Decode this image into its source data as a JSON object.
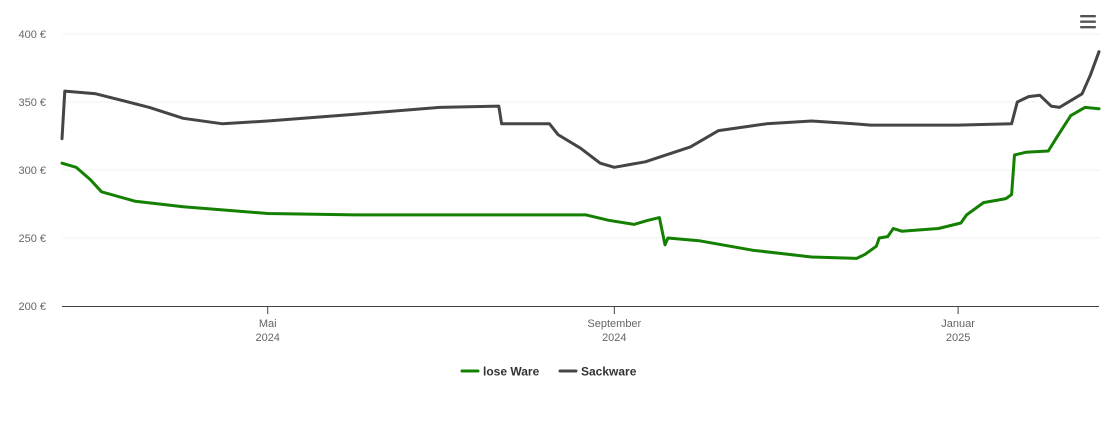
{
  "menu": {
    "icon": "hamburger-menu-icon"
  },
  "chart_data": {
    "type": "line",
    "title": "",
    "xlabel": "",
    "ylabel": "",
    "ylim": [
      200,
      400
    ],
    "y_ticks": [
      {
        "value": 200,
        "label": "200 €"
      },
      {
        "value": 250,
        "label": "250 €"
      },
      {
        "value": 300,
        "label": "300 €"
      },
      {
        "value": 350,
        "label": "350 €"
      },
      {
        "value": 400,
        "label": "400 €"
      }
    ],
    "xlim": [
      "2024-02-18",
      "2025-02-20"
    ],
    "x_ticks": [
      {
        "date": "2024-05-01",
        "line1": "Mai",
        "line2": "2024"
      },
      {
        "date": "2024-09-01",
        "line1": "September",
        "line2": "2024"
      },
      {
        "date": "2025-01-01",
        "line1": "Januar",
        "line2": "2025"
      }
    ],
    "grid": true,
    "legend_position": "bottom-center",
    "series": [
      {
        "name": "lose Ware",
        "color": "#138000",
        "points": [
          [
            "2024-02-18",
            305
          ],
          [
            "2024-02-23",
            302
          ],
          [
            "2024-02-28",
            293
          ],
          [
            "2024-03-03",
            284
          ],
          [
            "2024-03-15",
            277
          ],
          [
            "2024-04-01",
            273
          ],
          [
            "2024-05-01",
            268
          ],
          [
            "2024-06-01",
            267
          ],
          [
            "2024-08-01",
            267
          ],
          [
            "2024-08-22",
            267
          ],
          [
            "2024-08-30",
            263
          ],
          [
            "2024-09-08",
            260
          ],
          [
            "2024-09-13",
            263
          ],
          [
            "2024-09-17",
            265
          ],
          [
            "2024-09-19",
            245
          ],
          [
            "2024-09-20",
            250
          ],
          [
            "2024-10-01",
            248
          ],
          [
            "2024-10-20",
            241
          ],
          [
            "2024-11-10",
            236
          ],
          [
            "2024-11-26",
            235
          ],
          [
            "2024-11-29",
            238
          ],
          [
            "2024-12-03",
            244
          ],
          [
            "2024-12-04",
            250
          ],
          [
            "2024-12-07",
            251
          ],
          [
            "2024-12-09",
            257
          ],
          [
            "2024-12-12",
            255
          ],
          [
            "2024-12-25",
            257
          ],
          [
            "2025-01-02",
            261
          ],
          [
            "2025-01-04",
            267
          ],
          [
            "2025-01-10",
            276
          ],
          [
            "2025-01-18",
            279
          ],
          [
            "2025-01-20",
            282
          ],
          [
            "2025-01-21",
            311
          ],
          [
            "2025-01-25",
            313
          ],
          [
            "2025-02-02",
            314
          ],
          [
            "2025-02-05",
            324
          ],
          [
            "2025-02-10",
            340
          ],
          [
            "2025-02-15",
            346
          ],
          [
            "2025-02-20",
            345
          ]
        ]
      },
      {
        "name": "Sackware",
        "color": "#454545",
        "points": [
          [
            "2024-02-18",
            323
          ],
          [
            "2024-02-19",
            358
          ],
          [
            "2024-03-01",
            356
          ],
          [
            "2024-03-20",
            346
          ],
          [
            "2024-04-01",
            338
          ],
          [
            "2024-04-15",
            334
          ],
          [
            "2024-05-01",
            336
          ],
          [
            "2024-06-01",
            341
          ],
          [
            "2024-07-01",
            346
          ],
          [
            "2024-07-22",
            347
          ],
          [
            "2024-07-23",
            334
          ],
          [
            "2024-08-09",
            334
          ],
          [
            "2024-08-12",
            326
          ],
          [
            "2024-08-20",
            316
          ],
          [
            "2024-08-27",
            305
          ],
          [
            "2024-09-01",
            302
          ],
          [
            "2024-09-12",
            306
          ],
          [
            "2024-09-28",
            317
          ],
          [
            "2024-10-08",
            329
          ],
          [
            "2024-10-25",
            334
          ],
          [
            "2024-11-10",
            336
          ],
          [
            "2024-11-25",
            334
          ],
          [
            "2024-12-01",
            333
          ],
          [
            "2025-01-01",
            333
          ],
          [
            "2025-01-20",
            334
          ],
          [
            "2025-01-22",
            350
          ],
          [
            "2025-01-26",
            354
          ],
          [
            "2025-01-30",
            355
          ],
          [
            "2025-02-03",
            347
          ],
          [
            "2025-02-06",
            346
          ],
          [
            "2025-02-14",
            356
          ],
          [
            "2025-02-17",
            370
          ],
          [
            "2025-02-20",
            387
          ]
        ]
      }
    ]
  }
}
